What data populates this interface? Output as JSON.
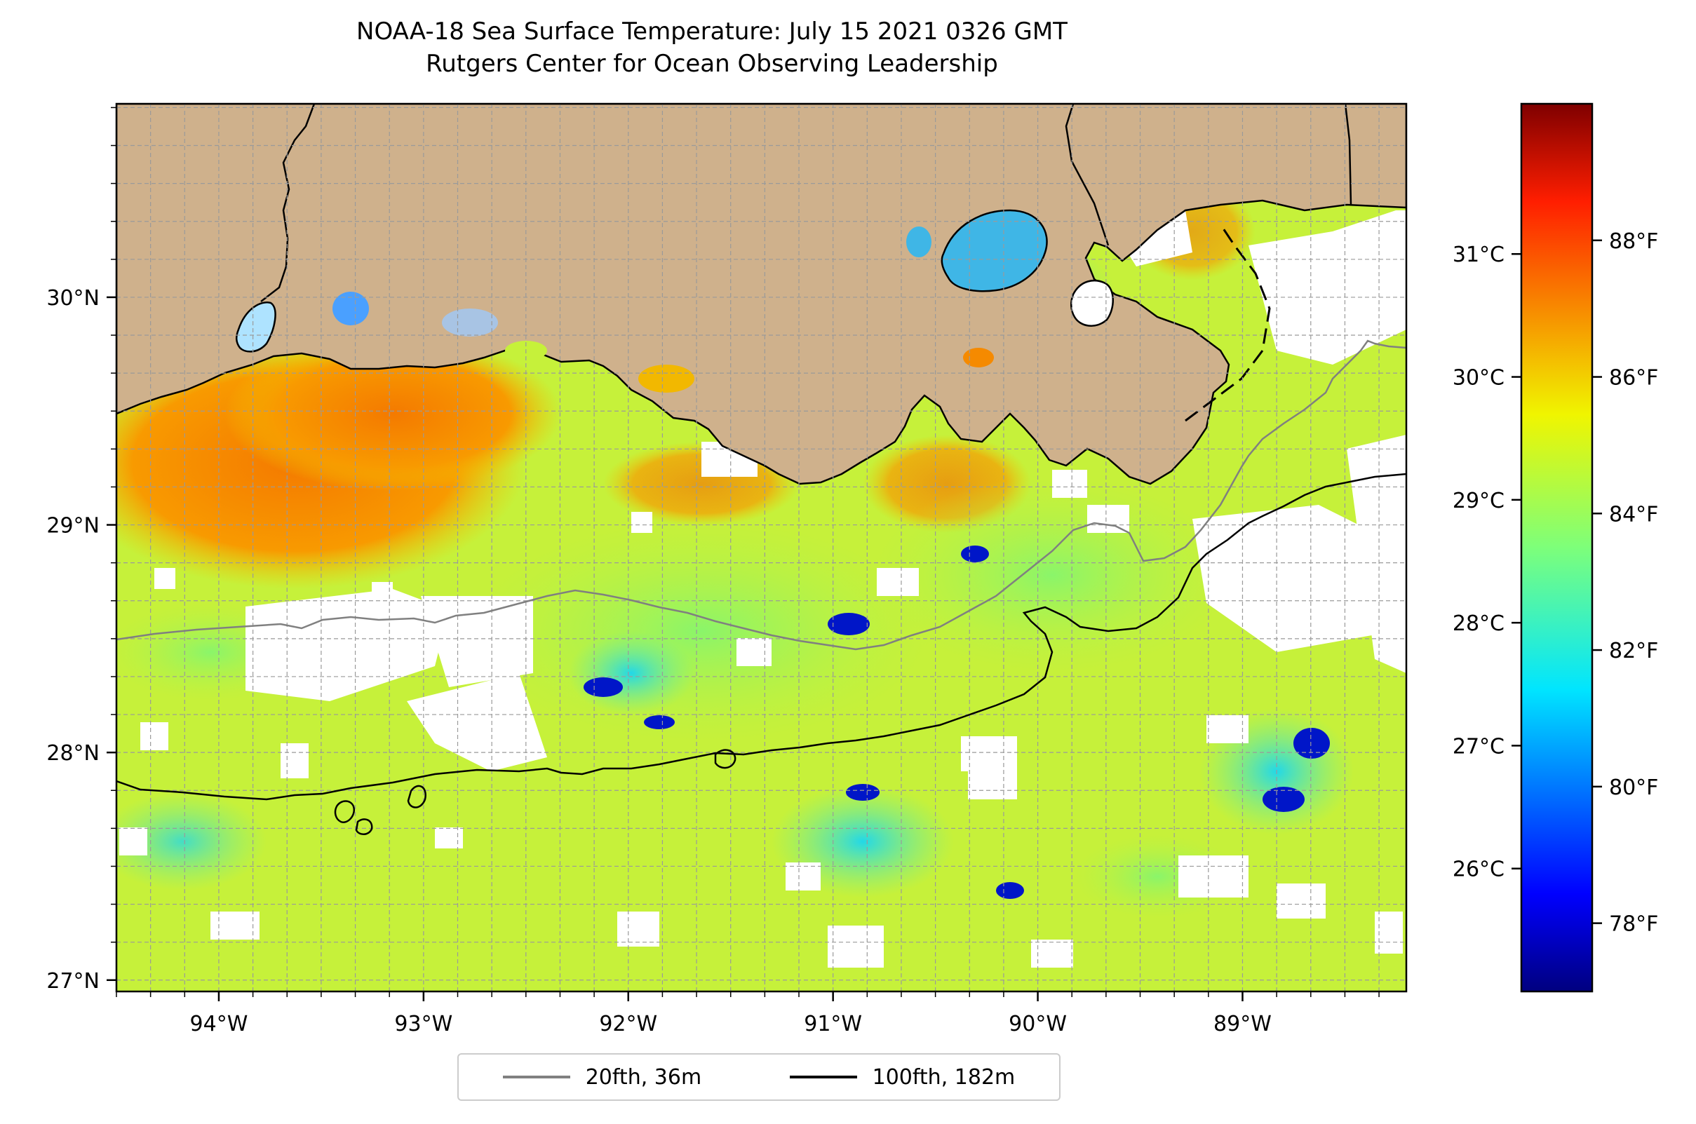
{
  "title": {
    "line1": "NOAA-18 Sea Surface Temperature: July 15 2021 0326 GMT",
    "line2": "Rutgers Center for Ocean Observing Leadership"
  },
  "colors": {
    "land": "#cfb18c",
    "coast": "#000000",
    "isobath_20": "#808080",
    "isobath_100": "#000000",
    "cloud": "#ffffff"
  },
  "chart_data": {
    "type": "heatmap",
    "colormap": "jet",
    "grid": true,
    "xlim": [
      -94.5,
      -88.2
    ],
    "ylim": [
      26.95,
      30.85
    ],
    "lon_ticks": [
      {
        "value": -94,
        "label": "94°W"
      },
      {
        "value": -93,
        "label": "93°W"
      },
      {
        "value": -92,
        "label": "92°W"
      },
      {
        "value": -91,
        "label": "91°W"
      },
      {
        "value": -90,
        "label": "90°W"
      },
      {
        "value": -89,
        "label": "89°W"
      }
    ],
    "lat_ticks": [
      {
        "value": 27,
        "label": "27°N"
      },
      {
        "value": 28,
        "label": "28°N"
      },
      {
        "value": 29,
        "label": "29°N"
      },
      {
        "value": 30,
        "label": "30°N"
      }
    ],
    "colorbar": {
      "range_f": [
        77,
        90
      ],
      "f_ticks": [
        {
          "value": 78,
          "label": "78°F"
        },
        {
          "value": 80,
          "label": "80°F"
        },
        {
          "value": 82,
          "label": "82°F"
        },
        {
          "value": 84,
          "label": "84°F"
        },
        {
          "value": 86,
          "label": "86°F"
        },
        {
          "value": 88,
          "label": "88°F"
        }
      ],
      "c_ticks": [
        {
          "value": 26,
          "label": "26°C"
        },
        {
          "value": 27,
          "label": "27°C"
        },
        {
          "value": 28,
          "label": "28°C"
        },
        {
          "value": 29,
          "label": "29°C"
        },
        {
          "value": 30,
          "label": "30°C"
        },
        {
          "value": 31,
          "label": "31°C"
        }
      ]
    },
    "legend_position": "bottom-center",
    "legend": [
      {
        "label": "20fth, 36m",
        "color": "#808080"
      },
      {
        "label": "100fth, 182m",
        "color": "#000000"
      }
    ]
  }
}
